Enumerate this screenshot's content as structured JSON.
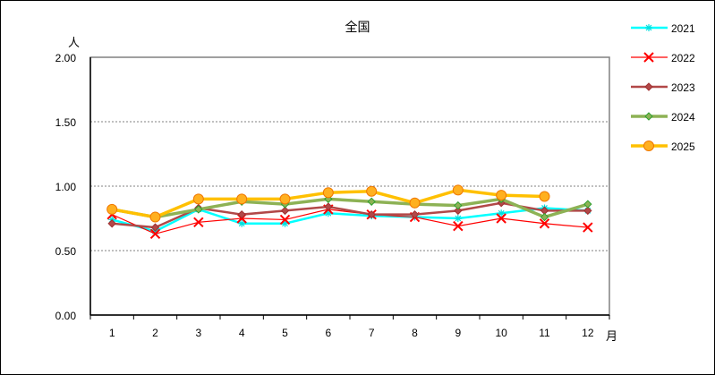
{
  "chart_data": {
    "type": "line",
    "title": "全国",
    "xlabel": "月",
    "ylabel": "人",
    "ylim": [
      0,
      2.0
    ],
    "yticks": [
      "0.00",
      "0.50",
      "1.00",
      "1.50",
      "2.00"
    ],
    "categories": [
      "1",
      "2",
      "3",
      "4",
      "5",
      "6",
      "7",
      "8",
      "9",
      "10",
      "11",
      "12"
    ],
    "grid": "horizontal dashed",
    "legend_position": "right",
    "series": [
      {
        "name": "2021",
        "color": "#00FFFF",
        "marker": "asterisk",
        "values": [
          0.74,
          0.65,
          0.82,
          0.71,
          0.71,
          0.79,
          0.77,
          0.76,
          0.75,
          0.79,
          0.83,
          0.81
        ]
      },
      {
        "name": "2022",
        "color": "#FF0000",
        "marker": "x",
        "values": [
          0.78,
          0.63,
          0.72,
          0.75,
          0.74,
          0.82,
          0.78,
          0.76,
          0.69,
          0.75,
          0.71,
          0.68
        ]
      },
      {
        "name": "2023",
        "color": "#B24848",
        "marker": "diamond",
        "values": [
          0.71,
          0.68,
          0.83,
          0.78,
          0.81,
          0.84,
          0.78,
          0.78,
          0.81,
          0.87,
          0.81,
          0.81
        ]
      },
      {
        "name": "2024",
        "color": "#8DB255",
        "marker": "diamond",
        "values": [
          0.82,
          0.76,
          0.82,
          0.88,
          0.86,
          0.9,
          0.88,
          0.86,
          0.85,
          0.9,
          0.76,
          0.86
        ]
      },
      {
        "name": "2025",
        "color": "#FFC000",
        "marker": "circle",
        "values": [
          0.82,
          0.76,
          0.9,
          0.9,
          0.9,
          0.95,
          0.96,
          0.87,
          0.97,
          0.93,
          0.92
        ]
      }
    ]
  }
}
